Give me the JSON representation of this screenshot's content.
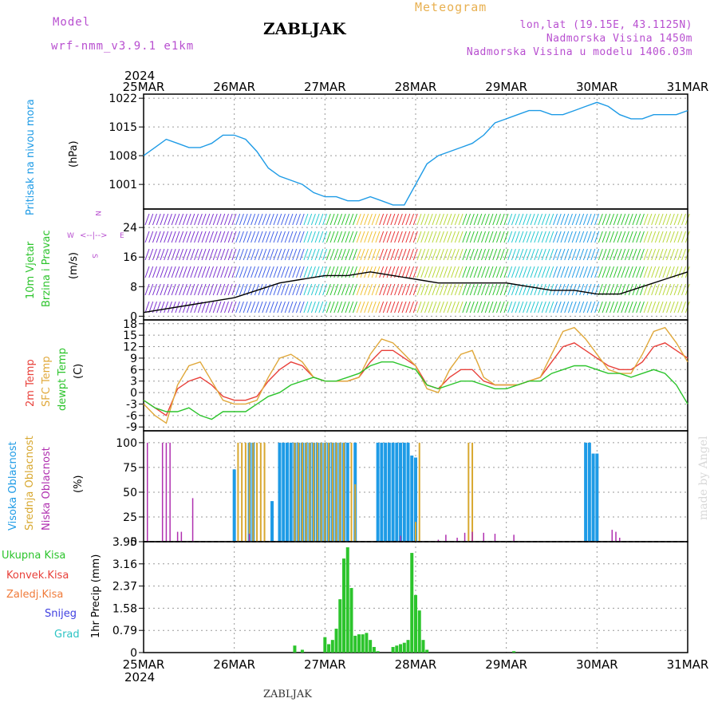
{
  "header": {
    "model_label": "Model",
    "model_run": "wrf-nmm_v3.9.1  e1km",
    "station": "ZABLJAK",
    "meteogram": "Meteogram",
    "coords": "lon,lat (19.15E, 43.1125N)",
    "elevation": "Nadmorska Visina 1450m",
    "model_elevation": "Nadmorska Visina u modelu 1406.03m",
    "footer_station": "ZABLJAK",
    "credit": "made by Angel"
  },
  "colors": {
    "pressure": "#1e9be6",
    "temp2m": "#e8403a",
    "sfc": "#e0a83a",
    "dewpt": "#2cc42c",
    "high_cloud": "#1e9be6",
    "mid_cloud": "#d8a830",
    "low_cloud": "#b030b0",
    "precip": "#2cc42c",
    "frame": "#000000",
    "grid": "#9a9a9a"
  },
  "time_axis": {
    "year": "2024",
    "labels": [
      "25MAR",
      "26MAR",
      "27MAR",
      "28MAR",
      "29MAR",
      "30MAR",
      "31MAR"
    ],
    "start": "2024-03-25T00:00",
    "end": "2024-03-31T00:00"
  },
  "panels": {
    "pressure": {
      "ylabel_main": "Pritisak na nivou mora",
      "ylabel_unit": "(hPa)",
      "ticks": [
        "1022",
        "1015",
        "1008",
        "1001"
      ]
    },
    "wind": {
      "ylabel_a": "10m Vjetar",
      "ylabel_b": "Brzina i Pravac",
      "ylabel_unit": "(m/s)",
      "compass": [
        "N",
        "E",
        "S",
        "W"
      ],
      "ticks": [
        "24",
        "16",
        "8",
        "0"
      ]
    },
    "temp": {
      "ylabel_a": "2m Temp",
      "ylabel_b": "SFC Temp",
      "ylabel_c": "dewpt Temp",
      "ylabel_unit": "(C)",
      "ticks": [
        "18",
        "15",
        "12",
        "9",
        "6",
        "3",
        "0",
        "-3",
        "-6",
        "-9"
      ]
    },
    "cloud": {
      "ylabel_a": "Visoka Oblacnost",
      "ylabel_b": "Srednja Oblacnost",
      "ylabel_c": "Niska  Oblacnost",
      "ylabel_unit": "(%)",
      "ticks": [
        "100",
        "75",
        "50",
        "25",
        "0"
      ]
    },
    "precip": {
      "legend": [
        "Ukupna  Kisa",
        "Konvek.Kisa",
        "Zaledj.Kisa",
        "Snijeg",
        "Grad"
      ],
      "ylabel": "1hr Precip (mm)",
      "ticks": [
        "3.95",
        "3.16",
        "2.37",
        "1.58",
        "0.79",
        "0"
      ]
    }
  },
  "chart_data": [
    {
      "type": "line",
      "title": "Pritisak na nivou mora",
      "ylabel": "(hPa)",
      "x_unit": "hours since 25MAR 00UTC",
      "ylim": [
        995,
        1023
      ],
      "series": [
        {
          "name": "Pritisak na nivou mora",
          "x": [
            0,
            3,
            6,
            9,
            12,
            15,
            18,
            21,
            24,
            27,
            30,
            33,
            36,
            39,
            42,
            45,
            48,
            51,
            54,
            57,
            60,
            63,
            66,
            69,
            72,
            75,
            78,
            81,
            84,
            87,
            90,
            93,
            96,
            99,
            102,
            105,
            108,
            111,
            114,
            117,
            120,
            123,
            126,
            129,
            132,
            135,
            138,
            141,
            144
          ],
          "y": [
            1008,
            1010,
            1012,
            1011,
            1010,
            1010,
            1011,
            1013,
            1013,
            1012,
            1009,
            1005,
            1003,
            1002,
            1001,
            999,
            998,
            998,
            997,
            997,
            998,
            997,
            996,
            996,
            1001,
            1006,
            1008,
            1009,
            1010,
            1011,
            1013,
            1016,
            1017,
            1018,
            1019,
            1019,
            1018,
            1018,
            1019,
            1020,
            1021,
            1020,
            1018,
            1017,
            1017,
            1018,
            1018,
            1018,
            1019
          ]
        }
      ]
    },
    {
      "type": "line",
      "title": "10m Vjetar Brzina i Pravac",
      "ylabel": "(m/s)",
      "x_unit": "hours since 25MAR 00UTC",
      "ylim": [
        -1,
        29
      ],
      "series": [
        {
          "name": "10m Vjetar",
          "x": [
            0,
            6,
            12,
            18,
            24,
            30,
            36,
            42,
            48,
            54,
            60,
            66,
            72,
            78,
            84,
            90,
            96,
            102,
            108,
            114,
            120,
            126,
            132,
            138,
            144
          ],
          "y": [
            1,
            2,
            3,
            4,
            5,
            7,
            9,
            10,
            11,
            11,
            12,
            11,
            10,
            9,
            9,
            9,
            9,
            8,
            7,
            7,
            6,
            6,
            8,
            10,
            12
          ]
        }
      ]
    },
    {
      "type": "line",
      "title": "2m Temp / SFC Temp / dewpt Temp",
      "ylabel": "(C)",
      "x_unit": "hours since 25MAR 00UTC",
      "ylim": [
        -10,
        19
      ],
      "series": [
        {
          "name": "2m Temp",
          "x": [
            0,
            3,
            6,
            9,
            12,
            15,
            18,
            21,
            24,
            27,
            30,
            33,
            36,
            39,
            42,
            45,
            48,
            51,
            54,
            57,
            60,
            63,
            66,
            69,
            72,
            75,
            78,
            81,
            84,
            87,
            90,
            93,
            96,
            99,
            102,
            105,
            108,
            111,
            114,
            117,
            120,
            123,
            126,
            129,
            132,
            135,
            138,
            141,
            144
          ],
          "y": [
            -2,
            -4,
            -6,
            1,
            3,
            4,
            2,
            -1,
            -2,
            -2,
            -1,
            3,
            6,
            8,
            7,
            4,
            3,
            3,
            3,
            4,
            8,
            11,
            11,
            9,
            7,
            2,
            1,
            4,
            6,
            6,
            3,
            2,
            2,
            2,
            3,
            4,
            8,
            12,
            13,
            11,
            9,
            7,
            6,
            6,
            8,
            12,
            13,
            11,
            9
          ]
        },
        {
          "name": "SFC Temp",
          "x": [
            0,
            3,
            6,
            9,
            12,
            15,
            18,
            21,
            24,
            27,
            30,
            33,
            36,
            39,
            42,
            45,
            48,
            51,
            54,
            57,
            60,
            63,
            66,
            69,
            72,
            75,
            78,
            81,
            84,
            87,
            90,
            93,
            96,
            99,
            102,
            105,
            108,
            111,
            114,
            117,
            120,
            123,
            126,
            129,
            132,
            135,
            138,
            141,
            144
          ],
          "y": [
            -3,
            -6,
            -8,
            2,
            7,
            8,
            3,
            -2,
            -3,
            -3,
            -2,
            4,
            9,
            10,
            8,
            4,
            3,
            3,
            3,
            4,
            10,
            14,
            13,
            10,
            7,
            1,
            0,
            6,
            10,
            11,
            4,
            2,
            2,
            2,
            3,
            4,
            10,
            16,
            17,
            14,
            10,
            6,
            5,
            5,
            10,
            16,
            17,
            13,
            8
          ]
        },
        {
          "name": "dewpt Temp",
          "x": [
            0,
            3,
            6,
            9,
            12,
            15,
            18,
            21,
            24,
            27,
            30,
            33,
            36,
            39,
            42,
            45,
            48,
            51,
            54,
            57,
            60,
            63,
            66,
            69,
            72,
            75,
            78,
            81,
            84,
            87,
            90,
            93,
            96,
            99,
            102,
            105,
            108,
            111,
            114,
            117,
            120,
            123,
            126,
            129,
            132,
            135,
            138,
            141,
            144
          ],
          "y": [
            -2,
            -4,
            -5,
            -5,
            -4,
            -6,
            -7,
            -5,
            -5,
            -5,
            -3,
            -1,
            0,
            2,
            3,
            4,
            3,
            3,
            4,
            5,
            7,
            8,
            8,
            7,
            6,
            2,
            1,
            2,
            3,
            3,
            2,
            1,
            1,
            2,
            3,
            3,
            5,
            6,
            7,
            7,
            6,
            5,
            5,
            4,
            5,
            6,
            5,
            2,
            -3
          ]
        }
      ]
    },
    {
      "type": "bar",
      "title": "Visoka / Srednja / Niska Oblacnost",
      "ylabel": "(%)",
      "x_unit": "hours since 25MAR 00UTC",
      "ylim": [
        0,
        100
      ],
      "series": [
        {
          "name": "Visoka Oblacnost",
          "points": [
            [
              24,
              73
            ],
            [
              28,
              100
            ],
            [
              29,
              100
            ],
            [
              34,
              41
            ],
            [
              36,
              100
            ],
            [
              37,
              100
            ],
            [
              38,
              100
            ],
            [
              39,
              100
            ],
            [
              40,
              100
            ],
            [
              41,
              100
            ],
            [
              42,
              100
            ],
            [
              43,
              100
            ],
            [
              44,
              100
            ],
            [
              45,
              100
            ],
            [
              46,
              100
            ],
            [
              47,
              100
            ],
            [
              48,
              100
            ],
            [
              49,
              100
            ],
            [
              50,
              100
            ],
            [
              51,
              100
            ],
            [
              52,
              100
            ],
            [
              53,
              100
            ],
            [
              54,
              100
            ],
            [
              56,
              100
            ],
            [
              62,
              100
            ],
            [
              63,
              100
            ],
            [
              64,
              100
            ],
            [
              65,
              100
            ],
            [
              66,
              100
            ],
            [
              67,
              100
            ],
            [
              68,
              100
            ],
            [
              69,
              100
            ],
            [
              70,
              100
            ],
            [
              71,
              87
            ],
            [
              72,
              85
            ],
            [
              117,
              100
            ],
            [
              118,
              100
            ],
            [
              119,
              89
            ],
            [
              120,
              89
            ]
          ]
        },
        {
          "name": "Srednja Oblacnost",
          "points": [
            [
              25,
              100
            ],
            [
              26,
              100
            ],
            [
              27,
              100
            ],
            [
              28,
              100
            ],
            [
              29,
              100
            ],
            [
              30,
              100
            ],
            [
              31,
              100
            ],
            [
              32,
              100
            ],
            [
              40,
              100
            ],
            [
              41,
              100
            ],
            [
              42,
              100
            ],
            [
              43,
              100
            ],
            [
              44,
              100
            ],
            [
              45,
              100
            ],
            [
              46,
              100
            ],
            [
              47,
              100
            ],
            [
              48,
              100
            ],
            [
              49,
              100
            ],
            [
              50,
              100
            ],
            [
              51,
              100
            ],
            [
              52,
              100
            ],
            [
              53,
              100
            ],
            [
              55,
              100
            ],
            [
              56,
              58
            ],
            [
              72,
              20
            ],
            [
              73,
              100
            ],
            [
              86,
              100
            ],
            [
              87,
              100
            ]
          ]
        },
        {
          "name": "Niska  Oblacnost",
          "points": [
            [
              1,
              100
            ],
            [
              5,
              100
            ],
            [
              6,
              100
            ],
            [
              7,
              100
            ],
            [
              9,
              10
            ],
            [
              10,
              10
            ],
            [
              13,
              44
            ],
            [
              28,
              8
            ],
            [
              68,
              6
            ],
            [
              78,
              2
            ],
            [
              80,
              7
            ],
            [
              83,
              4
            ],
            [
              85,
              9
            ],
            [
              87,
              10
            ],
            [
              90,
              9
            ],
            [
              93,
              8
            ],
            [
              98,
              7
            ],
            [
              124,
              12
            ],
            [
              125,
              10
            ],
            [
              126,
              4
            ]
          ]
        }
      ]
    },
    {
      "type": "bar",
      "title": "1hr Precip",
      "ylabel": "1hr Precip (mm)",
      "x_unit": "hours since 25MAR 00UTC",
      "ylim": [
        0,
        3.95
      ],
      "series": [
        {
          "name": "Ukupna  Kisa",
          "points": [
            [
              40,
              0.25
            ],
            [
              42,
              0.1
            ],
            [
              48,
              0.55
            ],
            [
              49,
              0.3
            ],
            [
              50,
              0.45
            ],
            [
              51,
              0.85
            ],
            [
              52,
              1.9
            ],
            [
              53,
              3.35
            ],
            [
              54,
              3.75
            ],
            [
              55,
              2.3
            ],
            [
              56,
              0.6
            ],
            [
              57,
              0.65
            ],
            [
              58,
              0.65
            ],
            [
              59,
              0.7
            ],
            [
              60,
              0.45
            ],
            [
              61,
              0.2
            ],
            [
              62,
              0.05
            ],
            [
              66,
              0.2
            ],
            [
              67,
              0.25
            ],
            [
              68,
              0.3
            ],
            [
              69,
              0.35
            ],
            [
              70,
              0.45
            ],
            [
              71,
              3.55
            ],
            [
              72,
              2.05
            ],
            [
              73,
              1.5
            ],
            [
              74,
              0.45
            ],
            [
              75,
              0.1
            ],
            [
              98,
              0.05
            ]
          ]
        }
      ]
    }
  ]
}
